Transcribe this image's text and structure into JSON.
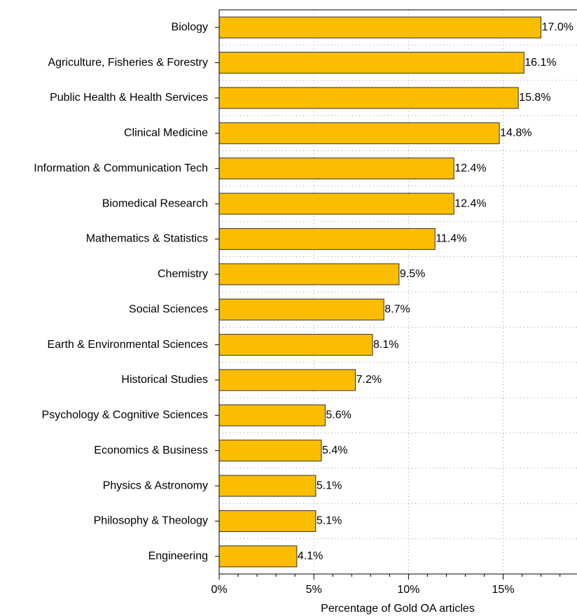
{
  "chart_data": {
    "type": "barh",
    "x_label": "Percentage of Gold OA articles",
    "categories": [
      "Biology",
      "Agriculture, Fisheries & Forestry",
      "Public Health & Health Services",
      "Clinical Medicine",
      "Information & Communication Tech",
      "Biomedical Research",
      "Mathematics & Statistics",
      "Chemistry",
      "Social Sciences",
      "Earth & Environmental Sciences",
      "Historical Studies",
      "Psychology & Cognitive Sciences",
      "Economics & Business",
      "Physics & Astronomy",
      "Philosophy & Theology",
      "Engineering"
    ],
    "values": [
      17.0,
      16.1,
      15.8,
      14.8,
      12.4,
      12.4,
      11.4,
      9.5,
      8.7,
      8.1,
      7.2,
      5.6,
      5.4,
      5.1,
      5.1,
      4.1
    ],
    "value_labels": [
      "17.0%",
      "16.1%",
      "15.8%",
      "14.8%",
      "12.4%",
      "12.4%",
      "11.4%",
      "9.5%",
      "8.7%",
      "8.1%",
      "7.2%",
      "5.6%",
      "5.4%",
      "5.1%",
      "5.1%",
      "4.1%"
    ],
    "color": "#fbbd00",
    "xlim": [
      0,
      18.9
    ],
    "xticks": [
      {
        "value": 0,
        "label": "0%"
      },
      {
        "value": 5,
        "label": "5%"
      },
      {
        "value": 10,
        "label": "10%"
      },
      {
        "value": 15,
        "label": "15%"
      }
    ],
    "xminor_ticks": [
      1,
      2,
      3,
      4,
      6,
      7,
      8,
      9,
      11,
      12,
      13,
      14,
      16,
      17,
      18
    ],
    "grid": true
  }
}
